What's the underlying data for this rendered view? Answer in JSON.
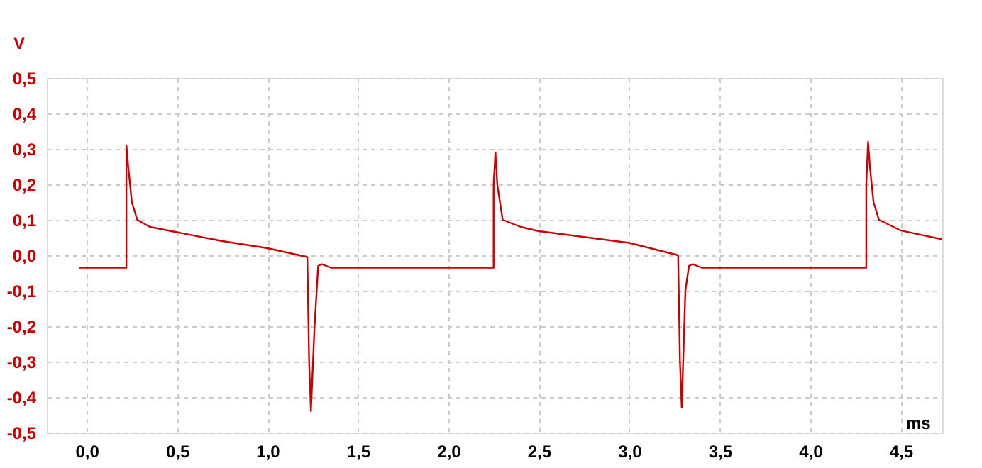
{
  "chart_data": {
    "type": "line",
    "xlabel": "ms",
    "ylabel": "V",
    "xlim": [
      -0.22,
      4.73
    ],
    "ylim": [
      -0.5,
      0.5
    ],
    "xticks": [
      {
        "value": 0,
        "label": "0,0"
      },
      {
        "value": 0.5,
        "label": "0,5"
      },
      {
        "value": 1,
        "label": "1,0"
      },
      {
        "value": 1.5,
        "label": "1,5"
      },
      {
        "value": 2,
        "label": "2,0"
      },
      {
        "value": 2.5,
        "label": "2,5"
      },
      {
        "value": 3,
        "label": "3,0"
      },
      {
        "value": 3.5,
        "label": "3,5"
      },
      {
        "value": 4,
        "label": "4,0"
      },
      {
        "value": 4.5,
        "label": "4,5"
      }
    ],
    "yticks": [
      {
        "value": -0.5,
        "label": "-0,5"
      },
      {
        "value": -0.4,
        "label": "-0,4"
      },
      {
        "value": -0.3,
        "label": "-0,3"
      },
      {
        "value": -0.2,
        "label": "-0,2"
      },
      {
        "value": -0.1,
        "label": "-0,1"
      },
      {
        "value": 0,
        "label": "0,0"
      },
      {
        "value": 0.1,
        "label": "0,1"
      },
      {
        "value": 0.2,
        "label": "0,2"
      },
      {
        "value": 0.3,
        "label": "0,3"
      },
      {
        "value": 0.4,
        "label": "0,4"
      },
      {
        "value": 0.5,
        "label": "0,5"
      }
    ],
    "grid": true,
    "line_style": "solid",
    "marker": "none",
    "series": [
      {
        "color": "#cc0000",
        "x": [
          -0.04,
          0.22,
          0.22,
          0.23,
          0.25,
          0.28,
          0.35,
          0.5,
          0.75,
          1.0,
          1.22,
          1.23,
          1.24,
          1.26,
          1.28,
          1.3,
          1.35,
          2.25,
          2.25,
          2.26,
          2.27,
          2.3,
          2.4,
          2.5,
          3.0,
          3.27,
          3.28,
          3.29,
          3.31,
          3.33,
          3.35,
          3.4,
          4.31,
          4.31,
          4.32,
          4.33,
          4.35,
          4.38,
          4.5,
          4.73
        ],
        "values": [
          -0.035,
          -0.035,
          0.31,
          0.25,
          0.15,
          0.1,
          0.08,
          0.065,
          0.04,
          0.02,
          -0.005,
          -0.3,
          -0.44,
          -0.2,
          -0.03,
          -0.025,
          -0.035,
          -0.035,
          0.2,
          0.29,
          0.2,
          0.1,
          0.08,
          0.068,
          0.035,
          0.0,
          -0.3,
          -0.43,
          -0.1,
          -0.03,
          -0.025,
          -0.035,
          -0.035,
          0.2,
          0.32,
          0.25,
          0.15,
          0.1,
          0.07,
          0.045
        ]
      }
    ]
  }
}
